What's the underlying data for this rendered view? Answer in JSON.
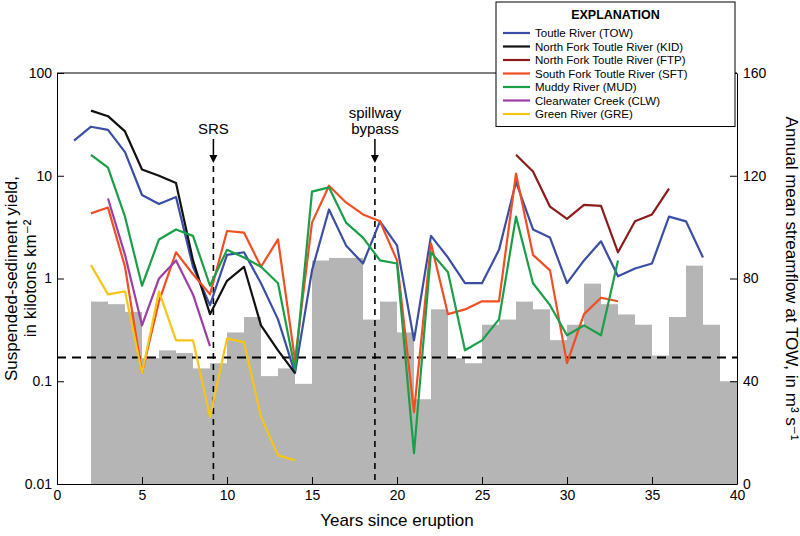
{
  "chart_data": {
    "type": "line",
    "log": "y",
    "grid": false,
    "legend": "upper right",
    "legend_title": "EXPLANATION",
    "xlabel": "Years since eruption",
    "ylabel": "Suspended-sediment yield, in kilotons km⁻²",
    "y2label": "Annual mean streamflow at TOW, in m³ s⁻¹",
    "xlim": [
      0,
      40
    ],
    "xticks": [
      0,
      5,
      10,
      15,
      20,
      25,
      30,
      35,
      40
    ],
    "ylim": [
      0.01,
      100
    ],
    "yticks": [
      0.01,
      0.1,
      1,
      10,
      100
    ],
    "y2lim": [
      0,
      160
    ],
    "y2ticks": [
      0,
      40,
      80,
      120,
      160
    ],
    "hline": 0.17,
    "annotations": [
      {
        "text": "SRS",
        "x": 9.2
      },
      {
        "text": "spillway bypass",
        "x": 18.7
      }
    ],
    "series": [
      {
        "type": "bar",
        "axis": "y2",
        "color": "#b5b5b5",
        "x": [
          2.5,
          3.5,
          4.5,
          5.5,
          6.5,
          7.5,
          8.5,
          9.5,
          10.5,
          11.5,
          12.5,
          13.5,
          14.5,
          15.5,
          16.5,
          17.5,
          18.5,
          19.5,
          20.5,
          21.5,
          22.5,
          23.5,
          24.5,
          25.5,
          26.5,
          27.5,
          28.5,
          29.5,
          30.5,
          31.5,
          32.5,
          33.5,
          34.5,
          35.5,
          36.5,
          37.5,
          38.5,
          39.5
        ],
        "values": [
          71,
          70,
          67,
          49,
          52,
          51,
          45,
          47,
          59,
          65,
          42,
          45,
          39,
          87,
          88,
          88,
          64,
          71,
          59,
          33,
          68,
          49,
          47,
          62,
          64,
          71,
          68,
          56,
          62,
          78,
          70,
          66,
          62,
          50,
          65,
          85,
          62,
          40
        ]
      },
      {
        "name": "Toutle River (TOW)",
        "type": "line",
        "color": "#3b4ea3",
        "x": [
          1,
          2,
          3,
          4,
          5,
          6,
          7,
          8,
          9,
          10,
          11,
          12,
          13,
          14,
          15,
          16,
          17,
          18,
          19,
          20,
          21,
          22,
          23,
          24,
          25,
          26,
          27,
          28,
          29,
          30,
          31,
          32,
          33,
          34,
          35,
          36,
          37,
          38
        ],
        "values": [
          22,
          30,
          28,
          17,
          6.5,
          5.3,
          6.2,
          1.3,
          0.55,
          1.7,
          1.8,
          0.9,
          0.4,
          0.12,
          1.2,
          4.7,
          2.1,
          1.4,
          3.6,
          2.1,
          0.25,
          2.6,
          1.6,
          0.9,
          0.9,
          1.9,
          8.7,
          3,
          2.5,
          0.9,
          1.5,
          2.3,
          1.05,
          1.25,
          1.4,
          4,
          3.6,
          1.6
        ]
      },
      {
        "name": "North Fork Toutle River (KID)",
        "type": "line",
        "color": "#111111",
        "x": [
          2,
          3,
          4,
          5,
          6,
          7,
          8,
          9,
          10,
          11,
          12,
          13,
          14
        ],
        "values": [
          43,
          38,
          27,
          11.5,
          10,
          8.5,
          1.5,
          0.45,
          0.95,
          1.3,
          0.35,
          0.2,
          0.12
        ]
      },
      {
        "name": "North Fork Toutle River (FTP)",
        "type": "line",
        "color": "#8b1c1c",
        "x": [
          27,
          28,
          29,
          30,
          31,
          32,
          33,
          34,
          35,
          36
        ],
        "values": [
          16,
          11,
          5,
          3.8,
          5.2,
          5.1,
          1.8,
          3.6,
          4.2,
          7.5
        ]
      },
      {
        "name": "South Fork Toutle River (SFT)",
        "type": "line",
        "color": "#f04e23",
        "x": [
          2,
          3,
          4,
          5,
          6,
          7,
          8,
          9,
          10,
          11,
          12,
          13,
          14,
          15,
          16,
          17,
          18,
          19,
          20,
          21,
          22,
          23,
          24,
          25,
          26,
          27,
          28,
          29,
          30,
          31,
          32,
          33
        ],
        "values": [
          4.3,
          4.9,
          1.3,
          0.12,
          0.6,
          1.8,
          1.1,
          0.7,
          2.9,
          2.8,
          1.3,
          2.4,
          0.16,
          3.5,
          8,
          5.5,
          4.2,
          3.6,
          1.5,
          0.05,
          2.2,
          0.45,
          0.5,
          0.6,
          0.6,
          10.5,
          1.7,
          1.2,
          0.15,
          0.45,
          0.65,
          0.6
        ]
      },
      {
        "name": "Muddy River (MUD)",
        "type": "line",
        "color": "#1a9e48",
        "x": [
          2,
          3,
          4,
          5,
          6,
          7,
          8,
          9,
          10,
          11,
          12,
          13,
          14,
          15,
          16,
          17,
          18,
          19,
          20,
          21,
          22,
          23,
          24,
          25,
          26,
          27,
          28,
          29,
          30,
          31,
          32,
          33
        ],
        "values": [
          16,
          12,
          4,
          0.85,
          2.4,
          3,
          2.6,
          0.85,
          1.9,
          1.6,
          1.3,
          0.9,
          0.13,
          7,
          7.7,
          3.5,
          2.5,
          1.5,
          1.4,
          0.02,
          1.8,
          1.15,
          0.2,
          0.25,
          0.4,
          4,
          0.9,
          0.55,
          0.28,
          0.35,
          0.28,
          1.5
        ]
      },
      {
        "name": "Clearwater Creek (CLW)",
        "type": "line",
        "color": "#9b3fa3",
        "x": [
          3,
          4,
          5,
          6,
          7,
          8,
          9
        ],
        "values": [
          6,
          1.7,
          0.35,
          1,
          1.5,
          0.7,
          0.22
        ]
      },
      {
        "name": "Green River (GRE)",
        "type": "line",
        "color": "#f5c518",
        "x": [
          2,
          3,
          4,
          5,
          6,
          7,
          8,
          9,
          10,
          11,
          12,
          13,
          14
        ],
        "values": [
          1.35,
          0.7,
          0.75,
          0.12,
          0.75,
          0.25,
          0.25,
          0.045,
          0.26,
          0.24,
          0.045,
          0.019,
          0.017
        ]
      }
    ]
  }
}
